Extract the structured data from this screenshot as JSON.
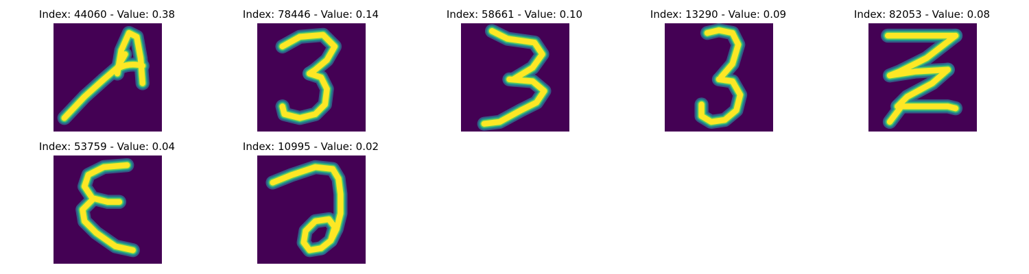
{
  "colors": {
    "background": "#440154",
    "mid_low": "#31688e",
    "mid": "#21918c",
    "mid_high": "#5ec962",
    "foreground": "#fde725"
  },
  "panels": [
    {
      "title": "Index: 44060 - Value: 0.38",
      "index": 44060,
      "value": 0.38,
      "glyph": "A"
    },
    {
      "title": "Index: 78446 - Value: 0.14",
      "index": 78446,
      "value": 0.14,
      "glyph": "3"
    },
    {
      "title": "Index: 58661 - Value: 0.10",
      "index": 58661,
      "value": 0.1,
      "glyph": "3"
    },
    {
      "title": "Index: 13290 - Value: 0.09",
      "index": 13290,
      "value": 0.09,
      "glyph": "3"
    },
    {
      "title": "Index: 82053 - Value: 0.08",
      "index": 82053,
      "value": 0.08,
      "glyph": "Z"
    },
    {
      "title": "Index: 53759 - Value: 0.04",
      "index": 53759,
      "value": 0.04,
      "glyph": "E"
    },
    {
      "title": "Index: 10995 - Value: 0.02",
      "index": 10995,
      "value": 0.02,
      "glyph": "a"
    }
  ]
}
